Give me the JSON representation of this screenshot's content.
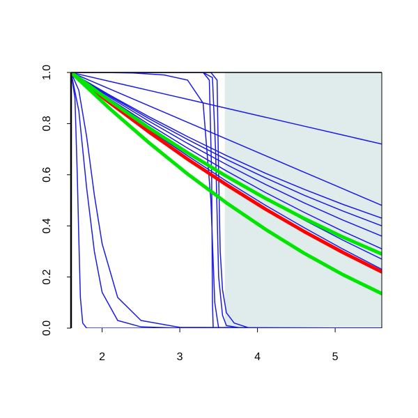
{
  "chart_data": {
    "type": "line",
    "xlim": [
      1.6,
      5.6
    ],
    "ylim": [
      0,
      1
    ],
    "xticks": [
      2,
      3,
      4,
      5
    ],
    "yticks": [
      {
        "value": 0,
        "label": "0.0"
      },
      0.2,
      0.4,
      0.6,
      0.8,
      {
        "value": 1,
        "label": "1.0"
      }
    ],
    "shaded_region": {
      "x": [
        3.58,
        5.6
      ],
      "color": "#e0ecec"
    },
    "series": [
      {
        "color": "#1a1ae6",
        "width": 1.5,
        "x": [
          1.6,
          2.1,
          2.6,
          3.1,
          3.6,
          4.1,
          4.6,
          5.1,
          5.6
        ],
        "values": [
          1,
          0.965,
          0.93,
          0.895,
          0.86,
          0.825,
          0.79,
          0.755,
          0.72
        ]
      },
      {
        "color": "#1a1ae6",
        "width": 1.5,
        "x": [
          1.6,
          2.1,
          2.6,
          3.1,
          3.6,
          4.1,
          4.6,
          5.1,
          5.6
        ],
        "values": [
          1,
          0.935,
          0.87,
          0.805,
          0.74,
          0.675,
          0.61,
          0.545,
          0.48
        ]
      },
      {
        "color": "#1a1ae6",
        "width": 1.5,
        "x": [
          1.6,
          2.1,
          2.6,
          3.1,
          3.6,
          4.1,
          4.6,
          5.1,
          5.6
        ],
        "values": [
          1,
          0.911,
          0.8275,
          0.749,
          0.675,
          0.606,
          0.543,
          0.484,
          0.43
        ]
      },
      {
        "color": "#1a1ae6",
        "width": 1.5,
        "x": [
          1.6,
          2.1,
          2.6,
          3.1,
          3.6,
          4.1,
          4.6,
          5.1,
          5.6
        ],
        "values": [
          1,
          0.9075,
          0.82,
          0.738,
          0.66,
          0.588,
          0.52,
          0.458,
          0.4
        ]
      },
      {
        "color": "#1a1ae6",
        "width": 1.5,
        "x": [
          1.6,
          2.1,
          2.6,
          3.1,
          3.6,
          4.1,
          4.6,
          5.1,
          5.6
        ],
        "values": [
          1,
          0.9025,
          0.81,
          0.7225,
          0.64,
          0.5625,
          0.49,
          0.4225,
          0.36
        ]
      },
      {
        "color": "#1a1ae6",
        "width": 1.5,
        "x": [
          1.6,
          2.1,
          2.6,
          3.1,
          3.6,
          4.1,
          4.6,
          5.1,
          5.6
        ],
        "values": [
          1,
          0.896,
          0.7975,
          0.704,
          0.615,
          0.531,
          0.453,
          0.379,
          0.31
        ]
      },
      {
        "color": "#1a1ae6",
        "width": 1.5,
        "x": [
          1.6,
          2.1,
          2.6,
          3.1,
          3.6,
          4.1,
          4.6,
          5.1,
          5.6
        ],
        "values": [
          1,
          0.891,
          0.7875,
          0.689,
          0.595,
          0.506,
          0.423,
          0.344,
          0.27
        ]
      },
      {
        "color": "#1a1ae6",
        "width": 1.5,
        "x": [
          1.6,
          2.1,
          2.6,
          3.1,
          3.6,
          4.1,
          4.6,
          5.1,
          5.6
        ],
        "values": [
          1,
          0.886,
          0.7775,
          0.674,
          0.575,
          0.481,
          0.393,
          0.309,
          0.23
        ]
      },
      {
        "color": "#1a1ae6",
        "width": 1.5,
        "x": [
          1.6,
          1.65,
          1.68,
          1.7,
          1.72,
          1.75,
          1.8,
          5.6
        ],
        "values": [
          1,
          0.9,
          0.6,
          0.35,
          0.12,
          0.02,
          0,
          0
        ]
      },
      {
        "color": "#1a1ae6",
        "width": 1.5,
        "x": [
          1.6,
          1.7,
          1.8,
          1.9,
          2.0,
          2.2,
          2.5,
          3.0,
          5.6
        ],
        "values": [
          1,
          0.85,
          0.55,
          0.3,
          0.14,
          0.03,
          0.005,
          0,
          0
        ]
      },
      {
        "color": "#1a1ae6",
        "width": 1.5,
        "x": [
          1.6,
          1.7,
          1.8,
          1.9,
          2.0,
          2.2,
          2.5,
          3.0,
          5.6
        ],
        "values": [
          1,
          0.93,
          0.75,
          0.52,
          0.33,
          0.12,
          0.03,
          0.003,
          0
        ]
      },
      {
        "color": "#1a1ae6",
        "width": 1.5,
        "x": [
          1.6,
          1.65,
          1.7,
          3.3,
          3.38,
          3.41,
          3.42,
          3.43,
          5.6
        ],
        "values": [
          0.98,
          1,
          1,
          1,
          0.97,
          0.6,
          0.1,
          0,
          0
        ]
      },
      {
        "color": "#1a1ae6",
        "width": 1.5,
        "x": [
          1.6,
          3.3,
          3.42,
          3.46,
          3.5,
          3.55,
          3.6,
          3.8,
          5.6
        ],
        "values": [
          1,
          1,
          0.98,
          0.7,
          0.2,
          0.05,
          0.01,
          0,
          0
        ]
      },
      {
        "color": "#1a1ae6",
        "width": 1.5,
        "x": [
          1.6,
          2.0,
          2.4,
          2.8,
          3.1,
          3.3,
          3.4,
          3.45,
          3.5,
          5.6
        ],
        "values": [
          1,
          1,
          0.998,
          0.99,
          0.97,
          0.88,
          0.5,
          0.1,
          0,
          0
        ]
      },
      {
        "color": "#1a1ae6",
        "width": 1.5,
        "x": [
          1.6,
          3.4,
          3.48,
          3.5,
          3.52,
          3.55,
          3.6,
          3.7,
          3.9,
          5.6
        ],
        "values": [
          1,
          1,
          0.97,
          0.6,
          0.3,
          0.15,
          0.06,
          0.02,
          0,
          0
        ]
      },
      {
        "color": "#ff0000",
        "width": 5,
        "x": [
          1.6,
          2.1,
          2.6,
          3.1,
          3.6,
          4.1,
          4.6,
          5.1,
          5.6
        ],
        "values": [
          1,
          0.881,
          0.768,
          0.661,
          0.561,
          0.466,
          0.378,
          0.296,
          0.22
        ]
      },
      {
        "color": "#00e600",
        "width": 5,
        "x": [
          1.6,
          2.1,
          2.6,
          3.1,
          3.6,
          4.1,
          4.6,
          5.1,
          5.6
        ],
        "values": [
          1,
          0.889,
          0.784,
          0.686,
          0.594,
          0.508,
          0.429,
          0.356,
          0.29
        ]
      },
      {
        "color": "#00e600",
        "width": 5,
        "x": [
          1.6,
          2.1,
          2.6,
          3.1,
          3.6,
          4.1,
          4.6,
          5.1,
          5.6
        ],
        "values": [
          1,
          0.858,
          0.726,
          0.603,
          0.49,
          0.387,
          0.293,
          0.209,
          0.135
        ]
      }
    ]
  }
}
